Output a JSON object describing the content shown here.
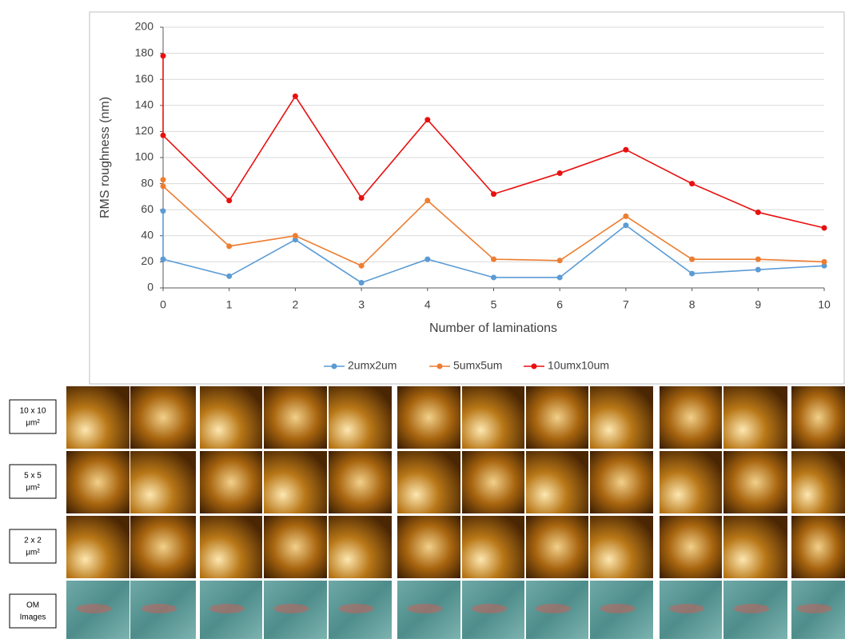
{
  "chart_data": {
    "type": "line",
    "y_label": "RMS roughness (nm)",
    "x_label": "Number of laminations",
    "x": [
      0,
      0,
      1,
      2,
      3,
      4,
      5,
      6,
      7,
      8,
      9,
      10
    ],
    "xlim": [
      0,
      10
    ],
    "xticks": [
      0,
      1,
      2,
      3,
      4,
      5,
      6,
      7,
      8,
      9,
      10
    ],
    "ylim": [
      0,
      200
    ],
    "yticks": [
      0,
      20,
      40,
      60,
      80,
      100,
      120,
      140,
      160,
      180,
      200
    ],
    "grid": true,
    "legend": "bottom",
    "series": [
      {
        "name": "2umx2um",
        "color": "#5b9bd5",
        "values": [
          59,
          22,
          9,
          37,
          4,
          22,
          8,
          8,
          48,
          11,
          14,
          17
        ]
      },
      {
        "name": "5umx5um",
        "color": "#ed7d31",
        "values": [
          83,
          78,
          32,
          40,
          17,
          67,
          22,
          21,
          55,
          22,
          22,
          20
        ]
      },
      {
        "name": "10umx10um",
        "color": "#e8100f",
        "values": [
          178,
          117,
          67,
          147,
          69,
          129,
          72,
          88,
          106,
          80,
          58,
          46
        ]
      }
    ]
  },
  "image_rows": [
    {
      "label": [
        "10 x 10",
        "μm²"
      ]
    },
    {
      "label": [
        "5 x 5",
        "μm²"
      ]
    },
    {
      "label": [
        "2 x 2",
        "μm²"
      ]
    },
    {
      "label": [
        "OM",
        "Images"
      ]
    }
  ]
}
